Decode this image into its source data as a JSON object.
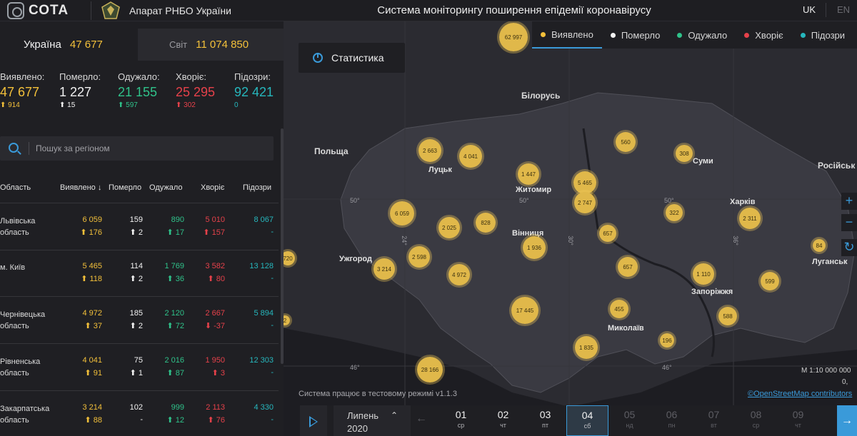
{
  "header": {
    "logo_text": "СОТА",
    "org_name": "Апарат РНБО України",
    "title": "Система моніторингу поширення епідемії коронавірусу",
    "lang_uk": "UK",
    "lang_en": "EN"
  },
  "scope": {
    "ukraine_label": "Україна",
    "ukraine_value": "47 677",
    "world_label": "Світ",
    "world_value": "11 074 850"
  },
  "stats": [
    {
      "label": "Виявлено:",
      "value": "47 677",
      "delta": "914"
    },
    {
      "label": "Померло:",
      "value": "1 227",
      "delta": "15"
    },
    {
      "label": "Одужало:",
      "value": "21 155",
      "delta": "597"
    },
    {
      "label": "Хворіє:",
      "value": "25 295",
      "delta": "302"
    },
    {
      "label": "Підозри:",
      "value": "92 421",
      "delta": "0"
    }
  ],
  "search": {
    "placeholder": "Пошук за регіоном"
  },
  "table": {
    "headers": [
      "Область",
      "Виявлено",
      "Померло",
      "Одужало",
      "Хворіє",
      "Підозри"
    ],
    "sort_indicator": "↓",
    "rows": [
      {
        "region1": "Львівська",
        "region2": "область",
        "detected": "6 059",
        "detected_d": "176",
        "died": "159",
        "died_d": "2",
        "recovered": "890",
        "recovered_d": "17",
        "sick": "5 010",
        "sick_d": "157",
        "suspected": "8 067",
        "suspected_d": "-"
      },
      {
        "region1": "м. Київ",
        "region2": "",
        "detected": "5 465",
        "detected_d": "118",
        "died": "114",
        "died_d": "2",
        "recovered": "1 769",
        "recovered_d": "36",
        "sick": "3 582",
        "sick_d": "80",
        "suspected": "13 128",
        "suspected_d": "-"
      },
      {
        "region1": "Чернівецька",
        "region2": "область",
        "detected": "4 972",
        "detected_d": "37",
        "died": "185",
        "died_d": "2",
        "recovered": "2 120",
        "recovered_d": "72",
        "sick": "2 667",
        "sick_d": "-37",
        "suspected": "5 894",
        "suspected_d": "-"
      },
      {
        "region1": "Рівненська",
        "region2": "область",
        "detected": "4 041",
        "detected_d": "91",
        "died": "75",
        "died_d": "1",
        "recovered": "2 016",
        "recovered_d": "87",
        "sick": "1 950",
        "sick_d": "3",
        "suspected": "12 303",
        "suspected_d": "-"
      },
      {
        "region1": "Закарпатська",
        "region2": "область",
        "detected": "3 214",
        "detected_d": "88",
        "died": "102",
        "died_d": "-",
        "recovered": "999",
        "recovered_d": "12",
        "sick": "2 113",
        "sick_d": "76",
        "suspected": "4 330",
        "suspected_d": "-"
      }
    ]
  },
  "map": {
    "stats_button": "Статистика",
    "legend": [
      "Виявлено",
      "Померло",
      "Одужало",
      "Хворіє",
      "Підозри"
    ],
    "legend_colors": [
      "#f3c03a",
      "#f2f2f2",
      "#2fc28a",
      "#e6414a",
      "#26b7bd"
    ],
    "countries": {
      "belarus": "Білорусь",
      "poland": "Польща",
      "russia": "Російськ"
    },
    "cities": {
      "lutsk": "Луцьк",
      "zhytomyr": "Житомир",
      "sumy": "Суми",
      "kharkiv": "Харків",
      "vinnytsia": "Вінниця",
      "uzhhorod": "Ужгород",
      "luhansk": "Луганськ",
      "zaporizhzhia": "Запоріжжя",
      "mykolaiv": "Миколаїв"
    },
    "grid_labels": {
      "lat50a": "50°",
      "lat50b": "50°",
      "lat50c": "50°",
      "lon24": "24°",
      "lon30": "30°",
      "lon36": "36°",
      "lat46a": "46°",
      "lat46b": "46°"
    },
    "bubbles": [
      "62 997",
      "2 663",
      "4 041",
      "1 447",
      "5 465",
      "560",
      "308",
      "6 059",
      "2 025",
      "828",
      "2 747",
      "322",
      "2 311",
      "720",
      "3 214",
      "2 598",
      "4 972",
      "1 936",
      "657",
      "84",
      "657",
      "1 110",
      "599",
      "17 445",
      "455",
      "588",
      "2",
      "196",
      "1 835",
      "28 166"
    ],
    "scale_text": "М 1:10 000 000",
    "scale_text2": "0,",
    "test_mode": "Система працює в тестовому режимі v1.1.3",
    "attribution": "©OpenStreetMap contributors"
  },
  "timeline": {
    "month": "Липень",
    "year": "2020",
    "days": [
      {
        "d": "01",
        "w": "ср"
      },
      {
        "d": "02",
        "w": "чт"
      },
      {
        "d": "03",
        "w": "пт"
      },
      {
        "d": "04",
        "w": "сб"
      },
      {
        "d": "05",
        "w": "нд"
      },
      {
        "d": "06",
        "w": "пн"
      },
      {
        "d": "07",
        "w": "вт"
      },
      {
        "d": "08",
        "w": "ср"
      },
      {
        "d": "09",
        "w": "чт"
      }
    ]
  }
}
